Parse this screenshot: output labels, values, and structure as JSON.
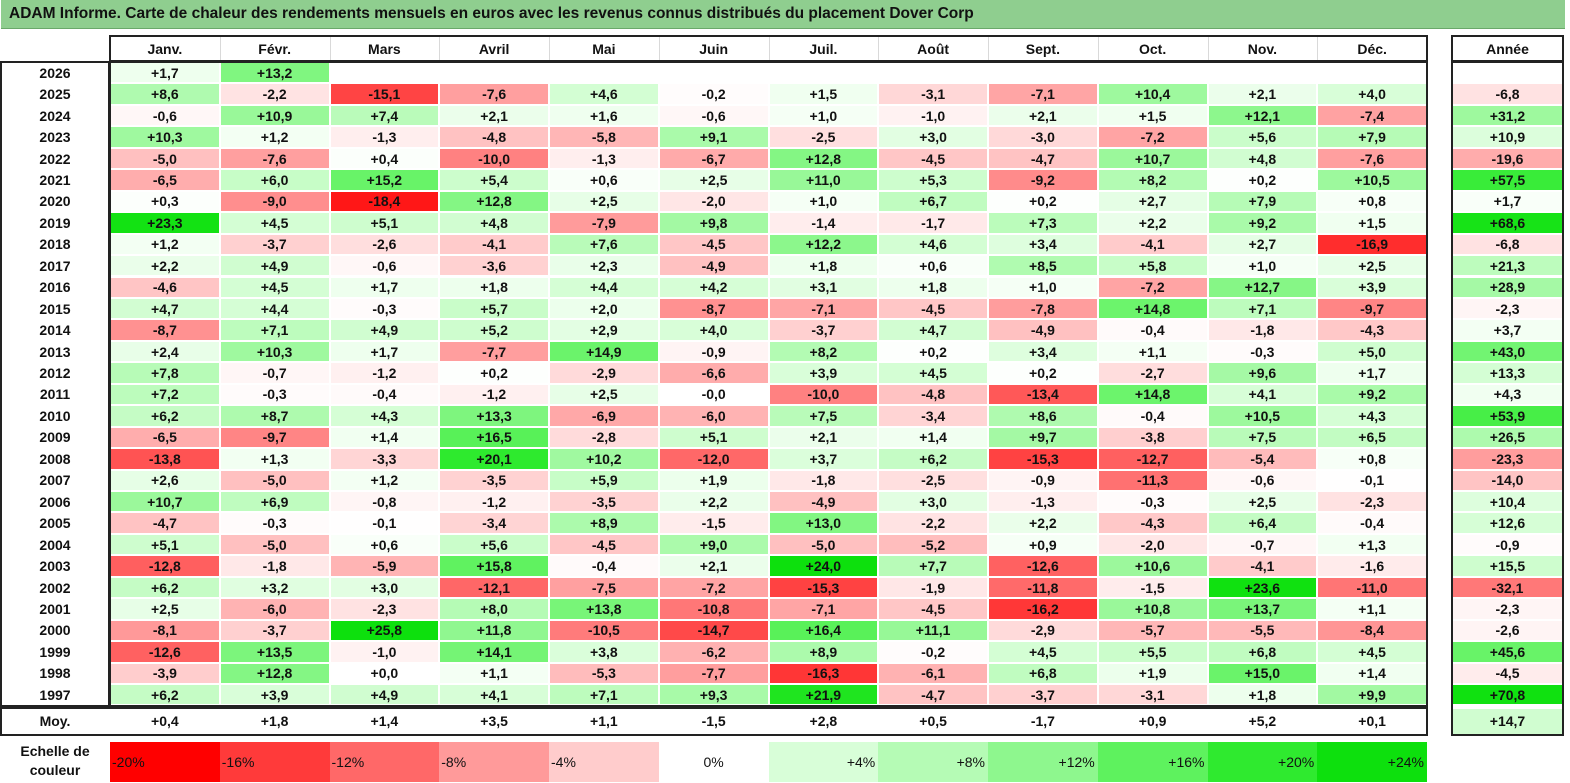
{
  "title": "ADAM Informe. Carte de chaleur des rendements mensuels en euros avec les revenus connus distribués du placement Dover Corp",
  "chart_data": {
    "type": "heatmap",
    "title": "ADAM Informe. Carte de chaleur des rendements mensuels en euros avec les revenus connus distribués du placement Dover Corp",
    "columns": [
      "Janv.",
      "Févr.",
      "Mars",
      "Avril",
      "Mai",
      "Juin",
      "Juil.",
      "Août",
      "Sept.",
      "Oct.",
      "Nov.",
      "Déc."
    ],
    "year_column": "Année",
    "rows": [
      {
        "label": "2026",
        "values": [
          "+1,7",
          "+13,2",
          "",
          "",
          "",
          "",
          "",
          "",
          "",
          "",
          "",
          ""
        ],
        "year": ""
      },
      {
        "label": "2025",
        "values": [
          "+8,6",
          "-2,2",
          "-15,1",
          "-7,6",
          "+4,6",
          "-0,2",
          "+1,5",
          "-3,1",
          "-7,1",
          "+10,4",
          "+2,1",
          "+4,0"
        ],
        "year": "-6,8"
      },
      {
        "label": "2024",
        "values": [
          "-0,6",
          "+10,9",
          "+7,4",
          "+2,1",
          "+1,6",
          "-0,6",
          "+1,0",
          "-1,0",
          "+2,1",
          "+1,5",
          "+12,1",
          "-7,4"
        ],
        "year": "+31,2"
      },
      {
        "label": "2023",
        "values": [
          "+10,3",
          "+1,2",
          "-1,3",
          "-4,8",
          "-5,8",
          "+9,1",
          "-2,5",
          "+3,0",
          "-3,0",
          "-7,2",
          "+5,6",
          "+7,9"
        ],
        "year": "+10,9"
      },
      {
        "label": "2022",
        "values": [
          "-5,0",
          "-7,6",
          "+0,4",
          "-10,0",
          "-1,3",
          "-6,7",
          "+12,8",
          "-4,5",
          "-4,7",
          "+10,7",
          "+4,8",
          "-7,6"
        ],
        "year": "-19,6"
      },
      {
        "label": "2021",
        "values": [
          "-6,5",
          "+6,0",
          "+15,2",
          "+5,4",
          "+0,6",
          "+2,5",
          "+11,0",
          "+5,3",
          "-9,2",
          "+8,2",
          "+0,2",
          "+10,5"
        ],
        "year": "+57,5"
      },
      {
        "label": "2020",
        "values": [
          "+0,3",
          "-9,0",
          "-18,4",
          "+12,8",
          "+2,5",
          "-2,0",
          "+1,0",
          "+6,7",
          "+0,2",
          "+2,7",
          "+7,9",
          "+0,8"
        ],
        "year": "+1,7"
      },
      {
        "label": "2019",
        "values": [
          "+23,3",
          "+4,5",
          "+5,1",
          "+4,8",
          "-7,9",
          "+9,8",
          "-1,4",
          "-1,7",
          "+7,3",
          "+2,2",
          "+9,2",
          "+1,5"
        ],
        "year": "+68,6"
      },
      {
        "label": "2018",
        "values": [
          "+1,2",
          "-3,7",
          "-2,6",
          "-4,1",
          "+7,6",
          "-4,5",
          "+12,2",
          "+4,6",
          "+3,4",
          "-4,1",
          "+2,7",
          "-16,9"
        ],
        "year": "-6,8"
      },
      {
        "label": "2017",
        "values": [
          "+2,2",
          "+4,9",
          "-0,6",
          "-3,6",
          "+2,3",
          "-4,9",
          "+1,8",
          "+0,6",
          "+8,5",
          "+5,8",
          "+1,0",
          "+2,5"
        ],
        "year": "+21,3"
      },
      {
        "label": "2016",
        "values": [
          "-4,6",
          "+4,5",
          "+1,7",
          "+1,8",
          "+4,4",
          "+4,2",
          "+3,1",
          "+1,8",
          "+1,0",
          "-7,2",
          "+12,7",
          "+3,9"
        ],
        "year": "+28,9"
      },
      {
        "label": "2015",
        "values": [
          "+4,7",
          "+4,4",
          "-0,3",
          "+5,7",
          "+2,0",
          "-8,7",
          "-7,1",
          "-4,5",
          "-7,8",
          "+14,8",
          "+7,1",
          "-9,7"
        ],
        "year": "-2,3"
      },
      {
        "label": "2014",
        "values": [
          "-8,7",
          "+7,1",
          "+4,9",
          "+5,2",
          "+2,9",
          "+4,0",
          "-3,7",
          "+4,7",
          "-4,9",
          "-0,4",
          "-1,8",
          "-4,3"
        ],
        "year": "+3,7"
      },
      {
        "label": "2013",
        "values": [
          "+2,4",
          "+10,3",
          "+1,7",
          "-7,7",
          "+14,9",
          "-0,9",
          "+8,2",
          "+0,2",
          "+3,4",
          "+1,1",
          "-0,3",
          "+5,0"
        ],
        "year": "+43,0"
      },
      {
        "label": "2012",
        "values": [
          "+7,8",
          "-0,7",
          "-1,2",
          "+0,2",
          "-2,9",
          "-6,6",
          "+3,9",
          "+4,5",
          "+0,2",
          "-2,7",
          "+9,6",
          "+1,7"
        ],
        "year": "+13,3"
      },
      {
        "label": "2011",
        "values": [
          "+7,2",
          "-0,3",
          "-0,4",
          "-1,2",
          "+2,5",
          "-0,0",
          "-10,0",
          "-4,8",
          "-13,4",
          "+14,8",
          "+4,1",
          "+9,2"
        ],
        "year": "+4,3"
      },
      {
        "label": "2010",
        "values": [
          "+6,2",
          "+8,7",
          "+4,3",
          "+13,3",
          "-6,9",
          "-6,0",
          "+7,5",
          "-3,4",
          "+8,6",
          "-0,4",
          "+10,5",
          "+4,3"
        ],
        "year": "+53,9"
      },
      {
        "label": "2009",
        "values": [
          "-6,5",
          "-9,7",
          "+1,4",
          "+16,5",
          "-2,8",
          "+5,1",
          "+2,1",
          "+1,4",
          "+9,7",
          "-3,8",
          "+7,5",
          "+6,5"
        ],
        "year": "+26,5"
      },
      {
        "label": "2008",
        "values": [
          "-13,8",
          "+1,3",
          "-3,3",
          "+20,1",
          "+10,2",
          "-12,0",
          "+3,7",
          "+6,2",
          "-15,3",
          "-12,7",
          "-5,4",
          "+0,8"
        ],
        "year": "-23,3"
      },
      {
        "label": "2007",
        "values": [
          "+2,6",
          "-5,0",
          "+1,2",
          "-3,5",
          "+5,9",
          "+1,9",
          "-1,8",
          "-2,5",
          "-0,9",
          "-11,3",
          "-0,6",
          "-0,1"
        ],
        "year": "-14,0"
      },
      {
        "label": "2006",
        "values": [
          "+10,7",
          "+6,9",
          "-0,8",
          "-1,2",
          "-3,5",
          "+2,2",
          "-4,9",
          "+3,0",
          "-1,3",
          "-0,3",
          "+2,5",
          "-2,3"
        ],
        "year": "+10,4"
      },
      {
        "label": "2005",
        "values": [
          "-4,7",
          "-0,3",
          "-0,1",
          "-3,4",
          "+8,9",
          "-1,5",
          "+13,0",
          "-2,2",
          "+2,2",
          "-4,3",
          "+6,4",
          "-0,4"
        ],
        "year": "+12,6"
      },
      {
        "label": "2004",
        "values": [
          "+5,1",
          "-5,0",
          "+0,6",
          "+5,6",
          "-4,5",
          "+9,0",
          "-5,0",
          "-5,2",
          "+0,9",
          "-2,0",
          "-0,7",
          "+1,3"
        ],
        "year": "-0,9"
      },
      {
        "label": "2003",
        "values": [
          "-12,8",
          "-1,8",
          "-5,9",
          "+15,8",
          "-0,4",
          "+2,1",
          "+24,0",
          "+7,7",
          "-12,6",
          "+10,6",
          "-4,1",
          "-1,6"
        ],
        "year": "+15,5"
      },
      {
        "label": "2002",
        "values": [
          "+6,2",
          "+3,2",
          "+3,0",
          "-12,1",
          "-7,5",
          "-7,2",
          "-15,3",
          "-1,9",
          "-11,8",
          "-1,5",
          "+23,6",
          "-11,0"
        ],
        "year": "-32,1"
      },
      {
        "label": "2001",
        "values": [
          "+2,5",
          "-6,0",
          "-2,3",
          "+8,0",
          "+13,8",
          "-10,8",
          "-7,1",
          "-4,5",
          "-16,2",
          "+10,8",
          "+13,7",
          "+1,1"
        ],
        "year": "-2,3"
      },
      {
        "label": "2000",
        "values": [
          "-8,1",
          "-3,7",
          "+25,8",
          "+11,8",
          "-10,5",
          "-14,7",
          "+16,4",
          "+11,1",
          "-2,9",
          "-5,7",
          "-5,5",
          "-8,4"
        ],
        "year": "-2,6"
      },
      {
        "label": "1999",
        "values": [
          "-12,6",
          "+13,5",
          "-1,0",
          "+14,1",
          "+3,8",
          "-6,2",
          "+8,9",
          "-0,2",
          "+4,5",
          "+5,5",
          "+6,8",
          "+4,5"
        ],
        "year": "+45,6"
      },
      {
        "label": "1998",
        "values": [
          "-3,9",
          "+12,8",
          "+0,0",
          "+1,1",
          "-5,3",
          "-7,7",
          "-16,3",
          "-6,1",
          "+6,8",
          "+1,9",
          "+15,0",
          "+1,4"
        ],
        "year": "-4,5"
      },
      {
        "label": "1997",
        "values": [
          "+6,2",
          "+3,9",
          "+4,9",
          "+4,1",
          "+7,1",
          "+9,3",
          "+21,9",
          "-4,7",
          "-3,7",
          "-3,1",
          "+1,8",
          "+9,9"
        ],
        "year": "+70,8"
      }
    ],
    "average": {
      "label": "Moy.",
      "values": [
        "+0,4",
        "+1,8",
        "+1,4",
        "+3,5",
        "+1,1",
        "-1,5",
        "+2,8",
        "+0,5",
        "-1,7",
        "+0,9",
        "+5,2",
        "+0,1"
      ],
      "year": "+14,7"
    },
    "color_scale": {
      "label": "Echelle de couleur",
      "stops": [
        {
          "label": "-20%",
          "value": -20,
          "color": "#ff0000"
        },
        {
          "label": "-16%",
          "value": -16,
          "color": "#ff3a3a"
        },
        {
          "label": "-12%",
          "value": -12,
          "color": "#ff6868"
        },
        {
          "label": "-8%",
          "value": -8,
          "color": "#ff9a9a"
        },
        {
          "label": "-4%",
          "value": -4,
          "color": "#ffcccc"
        },
        {
          "label": "0%",
          "value": 0,
          "color": "#ffffff"
        },
        {
          "label": "+4%",
          "value": 4,
          "color": "#d8fed8"
        },
        {
          "label": "+8%",
          "value": 8,
          "color": "#b5fbb5"
        },
        {
          "label": "+12%",
          "value": 12,
          "color": "#8ef78e"
        },
        {
          "label": "+16%",
          "value": 16,
          "color": "#5ef25e"
        },
        {
          "label": "+20%",
          "value": 20,
          "color": "#2fea2f"
        },
        {
          "label": "+24%",
          "value": 24,
          "color": "#0de00d"
        }
      ]
    }
  }
}
